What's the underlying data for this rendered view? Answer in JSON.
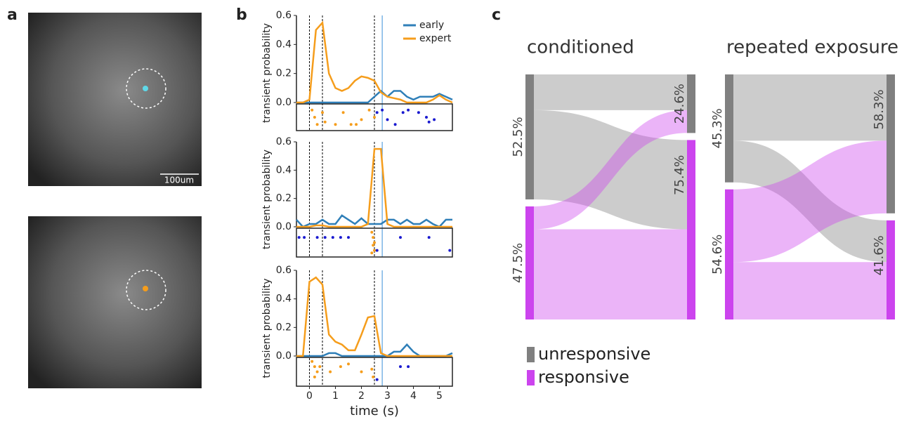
{
  "panel_labels": [
    "a",
    "b",
    "c"
  ],
  "scale_bar": "100um",
  "sankey_legend": {
    "names": [
      "unresponsive",
      "responsive"
    ],
    "colors": [
      "#808080",
      "#cc44ee"
    ]
  },
  "chart_data": [
    {
      "type": "line",
      "ylabel": "transient probability",
      "legend": "upper right",
      "x": [
        -0.5,
        -0.25,
        0,
        0.25,
        0.5,
        0.75,
        1,
        1.25,
        1.5,
        1.75,
        2,
        2.25,
        2.5,
        2.75,
        3,
        3.25,
        3.5,
        3.75,
        4,
        4.25,
        4.5,
        4.75,
        5,
        5.25,
        5.5
      ],
      "xlim": [
        -0.5,
        5.5
      ],
      "ylim": [
        0,
        0.6
      ],
      "yticks": [
        {
          "value": 0,
          "label": "0.0"
        },
        0.2,
        0.4,
        0.6
      ],
      "series": [
        {
          "name": "early",
          "color": "#2f7fb8",
          "values": [
            0,
            0,
            0,
            0,
            0,
            0,
            0,
            0,
            0,
            0,
            0,
            0,
            0.04,
            0.08,
            0.04,
            0.08,
            0.08,
            0.04,
            0.02,
            0.04,
            0.04,
            0.04,
            0.06,
            0.04,
            0.02
          ]
        },
        {
          "name": "expert",
          "color": "#f59d1c",
          "values": [
            0,
            0,
            0.02,
            0.5,
            0.55,
            0.2,
            0.1,
            0.08,
            0.1,
            0.15,
            0.18,
            0.17,
            0.15,
            0.07,
            0.04,
            0.03,
            0.02,
            0,
            0,
            0,
            0,
            0.02,
            0.05,
            0.02,
            0
          ]
        }
      ],
      "event_lines": [
        {
          "x": 0,
          "color": "#000000"
        },
        {
          "x": 0.5,
          "color": "#000000"
        },
        {
          "x": 2.5,
          "color": "#000000"
        },
        {
          "x": 2.8,
          "color": "#3a8fd8"
        }
      ],
      "raster": [
        {
          "color": "#f59d1c",
          "x": [
            0.1,
            0.2,
            0.3,
            0.5,
            0.6,
            1.0,
            1.3,
            1.6,
            1.8,
            2.0,
            2.3,
            2.5
          ],
          "y": [
            0.2,
            0.5,
            0.8,
            0.3,
            0.7,
            0.8,
            0.3,
            0.8,
            0.8,
            0.6,
            0.2,
            0.5
          ]
        },
        {
          "color": "#1a1ad0",
          "x": [
            2.6,
            2.8,
            3.0,
            3.3,
            3.6,
            3.8,
            4.2,
            4.5,
            4.6,
            4.8
          ],
          "y": [
            0.3,
            0.2,
            0.6,
            0.8,
            0.3,
            0.2,
            0.3,
            0.5,
            0.7,
            0.6
          ]
        }
      ]
    },
    {
      "type": "line",
      "ylabel": "transient probability",
      "x": [
        -0.5,
        -0.25,
        0,
        0.25,
        0.5,
        0.75,
        1,
        1.25,
        1.5,
        1.75,
        2,
        2.25,
        2.5,
        2.75,
        3,
        3.25,
        3.5,
        3.75,
        4,
        4.25,
        4.5,
        4.75,
        5,
        5.25,
        5.5
      ],
      "xlim": [
        -0.5,
        5.5
      ],
      "ylim": [
        0,
        0.6
      ],
      "yticks": [
        {
          "value": 0,
          "label": "0.0"
        },
        0.2,
        0.4,
        0.6
      ],
      "series": [
        {
          "color": "#2f7fb8",
          "values": [
            0.05,
            0,
            0.02,
            0.02,
            0.05,
            0.02,
            0.02,
            0.08,
            0.05,
            0.02,
            0.06,
            0.02,
            0.02,
            0.02,
            0.05,
            0.05,
            0.02,
            0.05,
            0.02,
            0.02,
            0.05,
            0.02,
            0,
            0.05,
            0.05
          ]
        },
        {
          "color": "#f59d1c",
          "values": [
            0,
            0,
            0,
            0.01,
            0.01,
            0,
            0,
            0,
            0,
            0,
            0,
            0.02,
            0.55,
            0.55,
            0.02,
            0,
            0,
            0,
            0,
            0,
            0,
            0,
            0,
            0,
            0
          ]
        }
      ],
      "event_lines": [
        {
          "x": 0,
          "color": "#000000"
        },
        {
          "x": 0.5,
          "color": "#000000"
        },
        {
          "x": 2.5,
          "color": "#000000"
        },
        {
          "x": 2.8,
          "color": "#3a8fd8"
        }
      ],
      "raster": [
        {
          "color": "#f59d1c",
          "x": [
            2.4,
            2.45,
            2.5,
            2.45,
            2.5,
            2.4
          ],
          "y": [
            0.1,
            0.3,
            0.5,
            0.6,
            0.8,
            0.9
          ]
        },
        {
          "color": "#1a1ad0",
          "x": [
            -0.4,
            -0.2,
            0.3,
            0.6,
            0.9,
            1.2,
            1.5,
            2.6,
            3.5,
            4.6,
            5.4
          ],
          "y": [
            0.3,
            0.3,
            0.3,
            0.3,
            0.3,
            0.3,
            0.3,
            0.8,
            0.3,
            0.3,
            0.8
          ]
        }
      ]
    },
    {
      "type": "line",
      "ylabel": "transient probability",
      "xlabel": "time (s)",
      "x": [
        -0.5,
        -0.25,
        0,
        0.25,
        0.5,
        0.75,
        1,
        1.25,
        1.5,
        1.75,
        2,
        2.25,
        2.5,
        2.75,
        3,
        3.25,
        3.5,
        3.75,
        4,
        4.25,
        4.5,
        4.75,
        5,
        5.25,
        5.5
      ],
      "xlim": [
        -0.5,
        5.5
      ],
      "xticks": [
        0,
        1,
        2,
        3,
        4,
        5
      ],
      "ylim": [
        0,
        0.6
      ],
      "yticks": [
        {
          "value": 0,
          "label": "0.0"
        },
        0.2,
        0.4,
        0.6
      ],
      "series": [
        {
          "color": "#2f7fb8",
          "values": [
            0,
            0,
            0,
            0,
            0,
            0.02,
            0.02,
            0,
            0,
            0,
            0,
            0,
            0,
            0,
            0,
            0.03,
            0.03,
            0.08,
            0.03,
            0,
            0,
            0,
            0,
            0,
            0.02
          ]
        },
        {
          "color": "#f59d1c",
          "values": [
            0,
            0,
            0.52,
            0.55,
            0.5,
            0.15,
            0.1,
            0.08,
            0.04,
            0.04,
            0.15,
            0.27,
            0.28,
            0.02,
            0,
            0,
            0,
            0,
            0,
            0,
            0,
            0,
            0,
            0,
            0
          ]
        }
      ],
      "event_lines": [
        {
          "x": 0,
          "color": "#000000"
        },
        {
          "x": 0.5,
          "color": "#000000"
        },
        {
          "x": 2.5,
          "color": "#000000"
        },
        {
          "x": 2.8,
          "color": "#3a8fd8"
        }
      ],
      "raster": [
        {
          "color": "#f59d1c",
          "x": [
            0.1,
            0.2,
            0.3,
            0.4,
            0.2,
            0.8,
            1.2,
            1.5,
            2.0,
            2.4,
            2.45
          ],
          "y": [
            0.1,
            0.3,
            0.5,
            0.3,
            0.7,
            0.5,
            0.3,
            0.2,
            0.5,
            0.4,
            0.7
          ]
        },
        {
          "color": "#1a1ad0",
          "x": [
            2.6,
            3.5,
            3.8
          ],
          "y": [
            0.8,
            0.3,
            0.3
          ]
        }
      ]
    },
    {
      "type": "sankey",
      "title": "conditioned",
      "left": {
        "values": [
          52.5,
          47.5
        ],
        "value_labels": [
          "52.5%",
          "47.5%"
        ]
      },
      "right": {
        "values": [
          24.6,
          75.4
        ],
        "value_labels": [
          "24.6%",
          "75.4%"
        ]
      },
      "flows": [
        [
          15,
          37.5
        ],
        [
          9.6,
          37.9
        ]
      ]
    },
    {
      "type": "sankey",
      "title": "repeated exposure",
      "left": {
        "values": [
          45.3,
          54.6
        ],
        "value_labels": [
          "45.3%",
          "54.6%"
        ]
      },
      "right": {
        "values": [
          58.3,
          41.6
        ],
        "value_labels": [
          "58.3%",
          "41.6%"
        ]
      },
      "flows": [
        [
          27.8,
          17.5
        ],
        [
          30.5,
          24.1
        ]
      ]
    }
  ]
}
